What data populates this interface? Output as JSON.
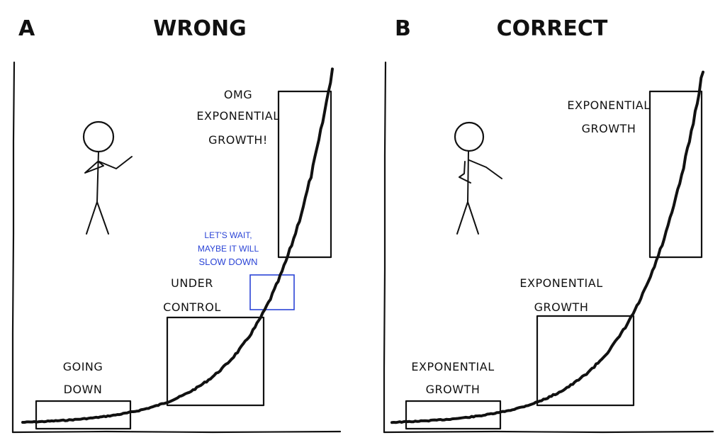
{
  "panel_a": {
    "letter": "A",
    "title": "WRONG",
    "labels": {
      "going_down_1": "GOING",
      "going_down_2": "DOWN",
      "under_control_1": "UNDER",
      "under_control_2": "CONTROL",
      "omg_1": "OMG",
      "omg_2": "EXPONENTIAL",
      "omg_3": "GROWTH!"
    },
    "note": {
      "line1": "LET'S WAIT,",
      "line2": "MAYBE IT WILL",
      "line3": "SLOW DOWN"
    }
  },
  "panel_b": {
    "letter": "B",
    "title": "CORRECT",
    "labels": {
      "low_1": "EXPONENTIAL",
      "low_2": "GROWTH",
      "mid_1": "EXPONENTIAL",
      "mid_2": "GROWTH",
      "high_1": "EXPONENTIAL",
      "high_2": "GROWTH"
    }
  },
  "colors": {
    "ink": "#111111",
    "note_blue": "#2b44d6",
    "background": "#ffffff"
  }
}
